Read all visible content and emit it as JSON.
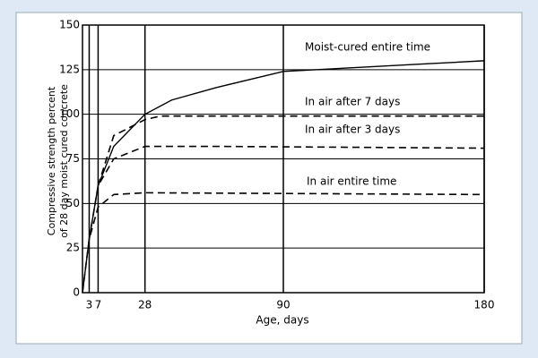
{
  "chart_data": {
    "type": "line",
    "xlabel": "Age, days",
    "ylabel": [
      "Compressive strength percent",
      "of 28 day moist cured concrete"
    ],
    "xlim": [
      0,
      180
    ],
    "xticks": [
      3,
      7,
      28,
      90,
      180
    ],
    "ylim": [
      0,
      150
    ],
    "yticks": [
      0,
      25,
      50,
      75,
      100,
      125,
      150
    ],
    "grid": true,
    "series": [
      {
        "name": "Moist-cured entire time",
        "color": "#000000",
        "dashed": false,
        "x": [
          0,
          3,
          7,
          14,
          28,
          40,
          60,
          90,
          120,
          150,
          180
        ],
        "values": [
          0,
          30,
          60,
          82,
          100,
          108,
          115,
          124,
          126,
          128,
          130
        ]
      },
      {
        "name": "In air after 7 days",
        "color": "#000000",
        "dashed": true,
        "x": [
          7,
          14,
          28,
          35,
          60,
          90,
          180
        ],
        "values": [
          60,
          88,
          97,
          99,
          99,
          99,
          99
        ]
      },
      {
        "name": "In air after 3 days",
        "color": "#000000",
        "dashed": true,
        "x": [
          3,
          7,
          14,
          28,
          60,
          180
        ],
        "values": [
          30,
          60,
          75,
          82,
          82,
          81
        ]
      },
      {
        "name": "In air entire time",
        "color": "#000000",
        "dashed": true,
        "x": [
          0,
          3,
          7,
          14,
          28,
          180
        ],
        "values": [
          0,
          30,
          48,
          55,
          56,
          55
        ]
      }
    ]
  }
}
